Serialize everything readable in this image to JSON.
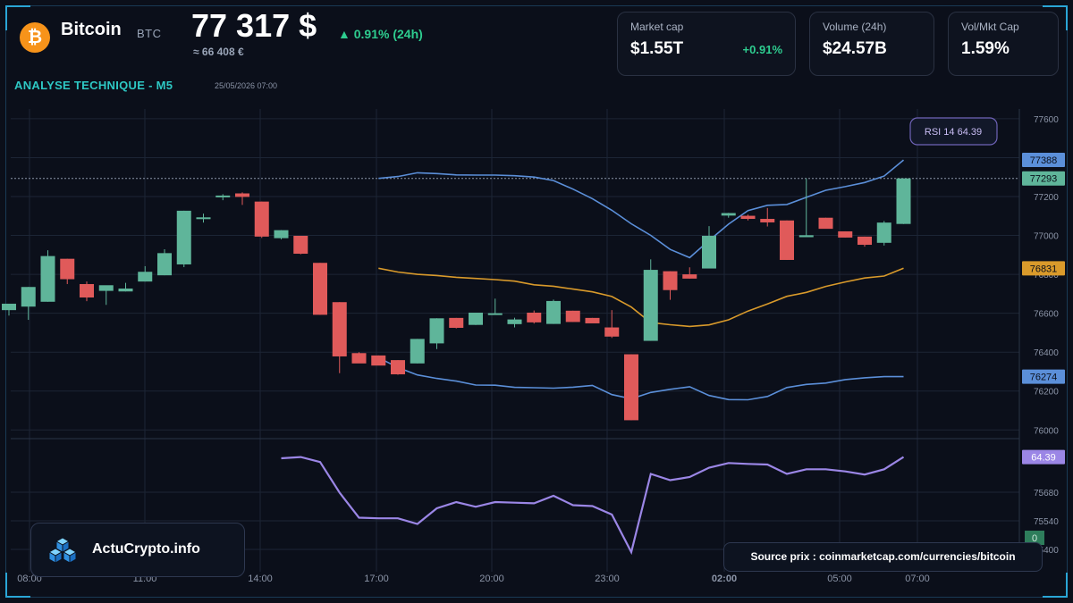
{
  "header": {
    "coin_symbol_glyph": "₿",
    "coin_name": "Bitcoin",
    "coin_ticker": "BTC",
    "price": "77 317 $",
    "change": "▲ 0.91% (24h)",
    "price_eur": "≈ 66 408 €",
    "analysis_title": "ANALYSE TECHNIQUE - M5",
    "analysis_datetime": "25/05/2026 07:00"
  },
  "stats": [
    {
      "label": "Market cap",
      "value": "$1.55T",
      "change": "+0.91%"
    },
    {
      "label": "Volume (24h)",
      "value": "$24.57B",
      "change": ""
    },
    {
      "label": "Vol/Mkt Cap",
      "value": "1.59%",
      "change": ""
    }
  ],
  "brand": {
    "name": "ActuCrypto.info"
  },
  "source": {
    "text": "Source prix : coinmarketcap.com/currencies/bitcoin"
  },
  "colors": {
    "background": "#0b0f1a",
    "grid": "#1c2535",
    "up": "#5fb59a",
    "down": "#e05a5a",
    "bollinger_band": "#5b8fd9",
    "bollinger_mid": "#d99a2b",
    "rsi": "#9b86e6",
    "axis_text": "#8c95a8"
  },
  "chart_data": [
    {
      "type": "candlestick",
      "title": "",
      "y_ticks": [
        77600,
        77400,
        77200,
        77000,
        76800,
        76600,
        76400,
        76200,
        76000
      ],
      "ylim": [
        75960,
        77650
      ],
      "x_ticks": [
        "08:00",
        "11:00",
        "14:00",
        "17:00",
        "20:00",
        "23:00",
        "02:00",
        "05:00",
        "07:00"
      ],
      "grid": true,
      "candles": [
        {
          "o": 76616,
          "h": 76649,
          "l": 76588,
          "c": 76649
        },
        {
          "o": 76634,
          "h": 76735,
          "l": 76566,
          "c": 76735
        },
        {
          "o": 76659,
          "h": 76924,
          "l": 76659,
          "c": 76894
        },
        {
          "o": 76880,
          "h": 76880,
          "l": 76750,
          "c": 76775
        },
        {
          "o": 76750,
          "h": 76763,
          "l": 76662,
          "c": 76681
        },
        {
          "o": 76715,
          "h": 76735,
          "l": 76643,
          "c": 76744
        },
        {
          "o": 76712,
          "h": 76756,
          "l": 76712,
          "c": 76727
        },
        {
          "o": 76763,
          "h": 76842,
          "l": 76763,
          "c": 76813
        },
        {
          "o": 76795,
          "h": 76929,
          "l": 76795,
          "c": 76909
        },
        {
          "o": 76851,
          "h": 77127,
          "l": 76837,
          "c": 77127
        },
        {
          "o": 77085,
          "h": 77112,
          "l": 77066,
          "c": 77093
        },
        {
          "o": 77196,
          "h": 77212,
          "l": 77181,
          "c": 77205
        },
        {
          "o": 77216,
          "h": 77221,
          "l": 77157,
          "c": 77198
        },
        {
          "o": 77174,
          "h": 77174,
          "l": 76987,
          "c": 76994
        },
        {
          "o": 76986,
          "h": 77027,
          "l": 76980,
          "c": 77027
        },
        {
          "o": 76998,
          "h": 76998,
          "l": 76903,
          "c": 76906
        },
        {
          "o": 76859,
          "h": 76859,
          "l": 76592,
          "c": 76592
        },
        {
          "o": 76657,
          "h": 76657,
          "l": 76292,
          "c": 76378
        },
        {
          "o": 76395,
          "h": 76400,
          "l": 76344,
          "c": 76342
        },
        {
          "o": 76383,
          "h": 76383,
          "l": 76333,
          "c": 76331
        },
        {
          "o": 76359,
          "h": 76359,
          "l": 76284,
          "c": 76286
        },
        {
          "o": 76342,
          "h": 76468,
          "l": 76342,
          "c": 76468
        },
        {
          "o": 76445,
          "h": 76574,
          "l": 76416,
          "c": 76574
        },
        {
          "o": 76576,
          "h": 76576,
          "l": 76522,
          "c": 76525
        },
        {
          "o": 76540,
          "h": 76603,
          "l": 76540,
          "c": 76603
        },
        {
          "o": 76600,
          "h": 76675,
          "l": 76594,
          "c": 76600
        },
        {
          "o": 76544,
          "h": 76577,
          "l": 76527,
          "c": 76568
        },
        {
          "o": 76603,
          "h": 76614,
          "l": 76547,
          "c": 76553
        },
        {
          "o": 76545,
          "h": 76670,
          "l": 76545,
          "c": 76663
        },
        {
          "o": 76613,
          "h": 76613,
          "l": 76555,
          "c": 76555
        },
        {
          "o": 76576,
          "h": 76576,
          "l": 76550,
          "c": 76548
        },
        {
          "o": 76527,
          "h": 76616,
          "l": 76473,
          "c": 76480
        },
        {
          "o": 76389,
          "h": 76389,
          "l": 76050,
          "c": 76050
        },
        {
          "o": 76458,
          "h": 76877,
          "l": 76458,
          "c": 76823
        },
        {
          "o": 76816,
          "h": 76816,
          "l": 76669,
          "c": 76719
        },
        {
          "o": 76800,
          "h": 76836,
          "l": 76778,
          "c": 76778
        },
        {
          "o": 76830,
          "h": 77048,
          "l": 76830,
          "c": 76998
        },
        {
          "o": 77102,
          "h": 77116,
          "l": 77091,
          "c": 77115
        },
        {
          "o": 77101,
          "h": 77107,
          "l": 77077,
          "c": 77085
        },
        {
          "o": 77085,
          "h": 77141,
          "l": 77046,
          "c": 77067
        },
        {
          "o": 77077,
          "h": 77077,
          "l": 76874,
          "c": 76874
        },
        {
          "o": 76991,
          "h": 77293,
          "l": 76991,
          "c": 77001
        },
        {
          "o": 77091,
          "h": 77091,
          "l": 77035,
          "c": 77034
        },
        {
          "o": 77021,
          "h": 77021,
          "l": 76989,
          "c": 76989
        },
        {
          "o": 76994,
          "h": 76994,
          "l": 76942,
          "c": 76952
        },
        {
          "o": 76962,
          "h": 77074,
          "l": 76948,
          "c": 77066
        },
        {
          "o": 77059,
          "h": 77293,
          "l": 77059,
          "c": 77293
        }
      ],
      "bollinger": {
        "upper": [
          77293,
          77303,
          77322,
          77318,
          77311,
          77310,
          77310,
          77307,
          77300,
          77282,
          77238,
          77189,
          77129,
          77060,
          77000,
          76928,
          76886,
          76974,
          77058,
          77128,
          77155,
          77159,
          77196,
          77232,
          77251,
          77272,
          77305,
          77388
        ],
        "middle": [
          76831,
          76812,
          76800,
          76794,
          76785,
          76779,
          76773,
          76765,
          76746,
          76739,
          76724,
          76710,
          76686,
          76632,
          76552,
          76541,
          76532,
          76540,
          76566,
          76611,
          76648,
          76687,
          76707,
          76738,
          76761,
          76781,
          76791,
          76831
        ],
        "lower": [
          76372,
          76321,
          76283,
          76265,
          76251,
          76231,
          76230,
          76219,
          76217,
          76215,
          76220,
          76229,
          76182,
          76160,
          76193,
          76209,
          76222,
          76177,
          76156,
          76155,
          76172,
          76218,
          76234,
          76241,
          76259,
          76268,
          76274,
          76274
        ],
        "start_index": 19,
        "last_values": {
          "upper": 77388,
          "middle": 76831,
          "lower": 76274
        }
      },
      "current_price_label": "77293",
      "rsi_badge": "RSI 14 64.39"
    },
    {
      "type": "line",
      "title": "",
      "series": [
        {
          "name": "RSI 14",
          "values": [
            64.0,
            64.39,
            62.8,
            53.0,
            45.0,
            44.8,
            44.8,
            43.0,
            48.0,
            50.0,
            48.5,
            50.0,
            49.8,
            49.6,
            52.0,
            49.0,
            48.7,
            46.0,
            34.0,
            59.0,
            57.0,
            58.0,
            61.0,
            62.5,
            62.2,
            62.0,
            59.0,
            60.5,
            60.5,
            59.8,
            58.8,
            60.5,
            64.39
          ]
        }
      ],
      "start_index": 14,
      "y_ticks": [
        "75680",
        "75540",
        "75400",
        "64.39",
        "0"
      ],
      "ylim": [
        30,
        70
      ],
      "last_value_label": "64.39",
      "zero_label": "0",
      "grid": true
    }
  ]
}
